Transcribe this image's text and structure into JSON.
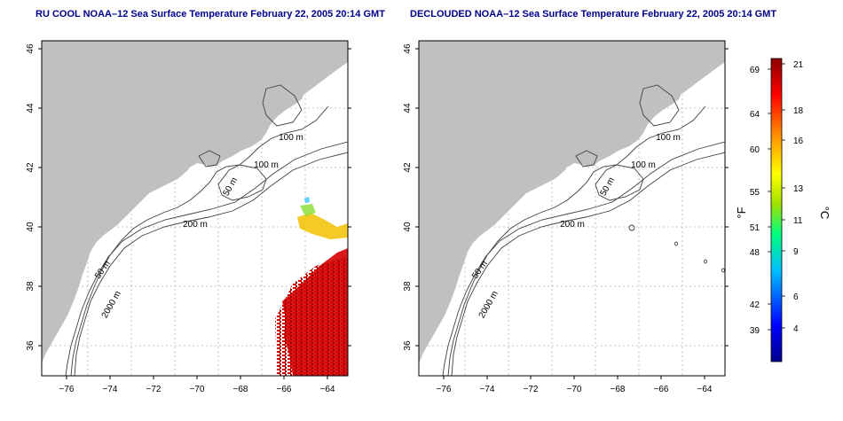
{
  "panels": [
    {
      "title": "RU COOL NOAA–12 Sea Surface Temperature February 22, 2005 20:14 GMT"
    },
    {
      "title": "DECLOUDED NOAA–12 Sea Surface Temperature February 22, 2005 20:14 GMT"
    }
  ],
  "axes": {
    "lon_ticks": [
      "−76",
      "−74",
      "−72",
      "−70",
      "−68",
      "−66",
      "−64"
    ],
    "lat_ticks": [
      "36",
      "38",
      "40",
      "42",
      "44",
      "46"
    ]
  },
  "contours": {
    "left": [
      "100 m",
      "100 m",
      "50 m",
      "200 m",
      "50 m",
      "2000 m"
    ],
    "right": [
      "100 m",
      "100 m",
      "50 m",
      "200 m",
      "50 m",
      "2000 m"
    ]
  },
  "colorbar": {
    "f_label": "°F",
    "c_label": "°C",
    "f_ticks": [
      "69",
      "64",
      "60",
      "55",
      "51",
      "48",
      "42",
      "39"
    ],
    "c_ticks": [
      "21",
      "18",
      "16",
      "13",
      "11",
      "9",
      "6",
      "4"
    ]
  },
  "colors": {
    "land": "#c0c0c0",
    "ocean": "#ffffff",
    "title": "#00008b",
    "grid": "#b4b4b4",
    "contour": "#404040"
  }
}
